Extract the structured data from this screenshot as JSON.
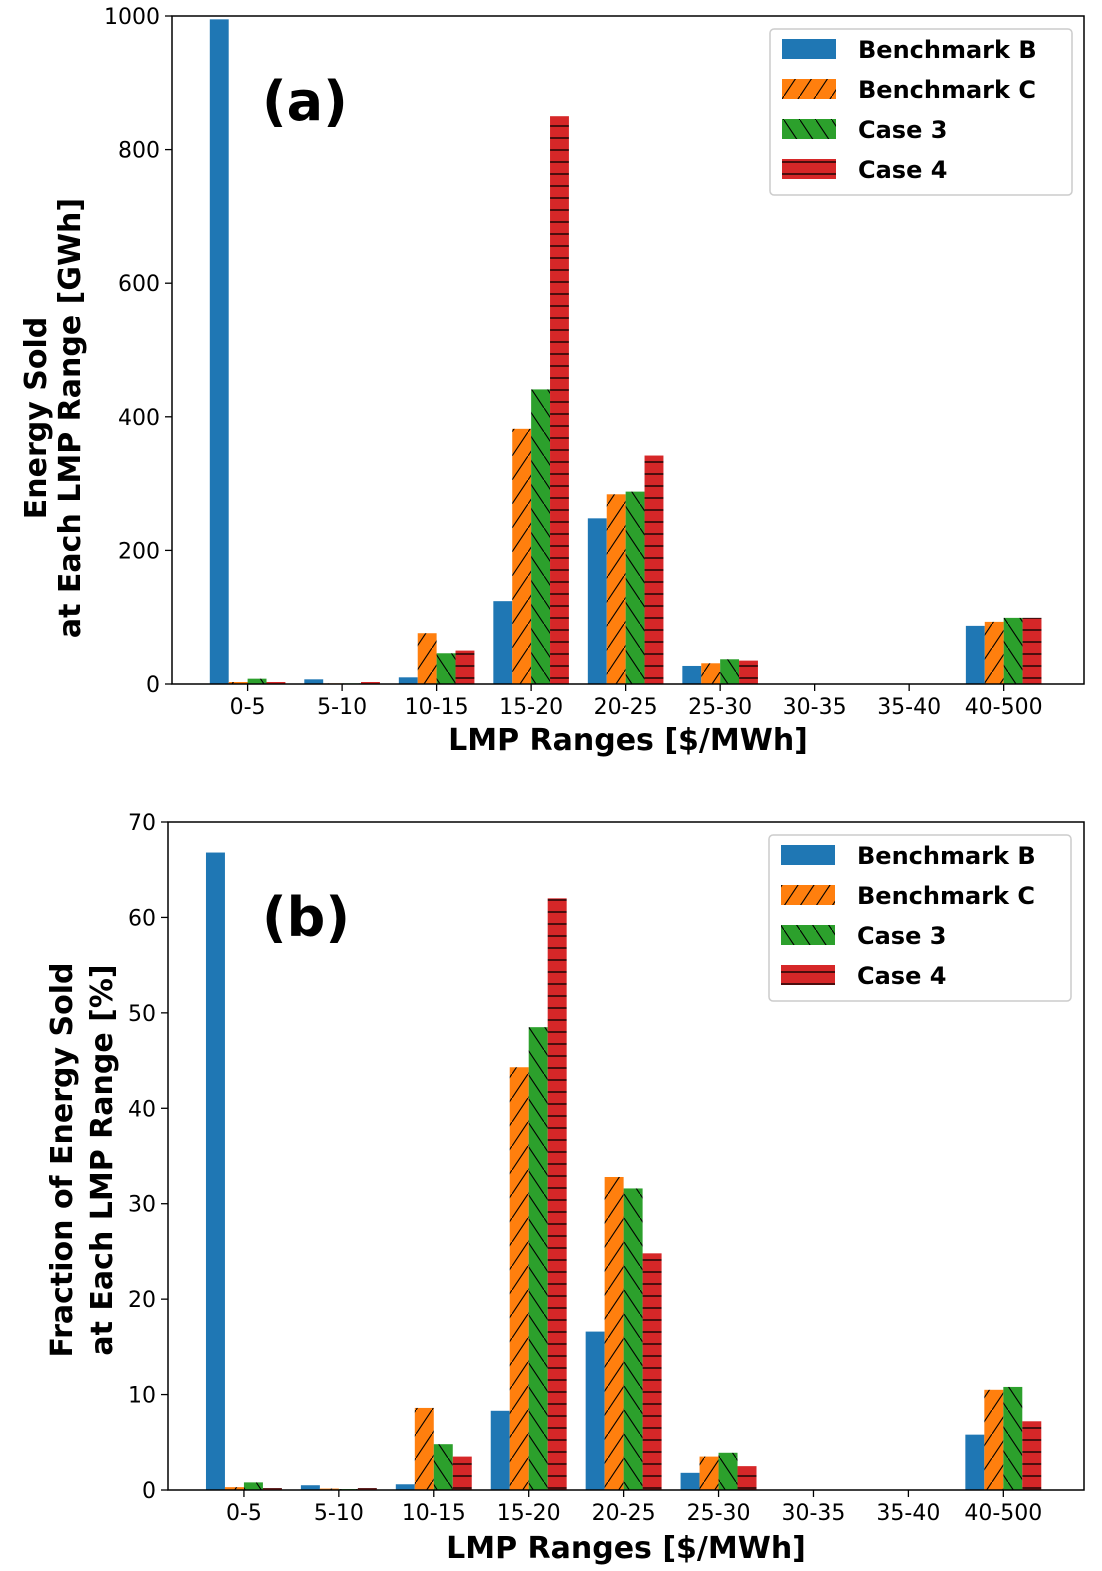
{
  "colors": {
    "benchmark_b": "#1f77b4",
    "benchmark_c": "#ff7f0e",
    "case_3": "#2ca02c",
    "case_4": "#d62728"
  },
  "chart_data": [
    {
      "type": "bar",
      "panel_tag": "(a)",
      "xlabel": "LMP Ranges [$/MWh]",
      "ylabel_lines": [
        "Energy Sold",
        "at Each LMP Range [GWh]"
      ],
      "ylim": [
        0,
        1000
      ],
      "yticks": [
        "0",
        "200",
        "400",
        "600",
        "800",
        "1000"
      ],
      "grid": false,
      "legend_position": "top-right",
      "categories": [
        "0-5",
        "5-10",
        "10-15",
        "15-20",
        "20-25",
        "25-30",
        "30-35",
        "35-40",
        "40-500"
      ],
      "series": [
        {
          "name": "Benchmark B",
          "color": "#1f77b4",
          "hatch": "none",
          "values": [
            995,
            7,
            10,
            124,
            248,
            27,
            0,
            0,
            87
          ]
        },
        {
          "name": "Benchmark C",
          "color": "#ff7f0e",
          "hatch": "slash",
          "values": [
            3,
            1,
            76,
            382,
            284,
            31,
            0,
            0,
            93
          ]
        },
        {
          "name": "Case 3",
          "color": "#2ca02c",
          "hatch": "backslash",
          "values": [
            8,
            1,
            46,
            441,
            288,
            37,
            0,
            0,
            99
          ]
        },
        {
          "name": "Case 4",
          "color": "#d62728",
          "hatch": "horizontal",
          "values": [
            3,
            3,
            50,
            850,
            342,
            35,
            0,
            0,
            99
          ]
        }
      ]
    },
    {
      "type": "bar",
      "panel_tag": "(b)",
      "xlabel": "LMP Ranges [$/MWh]",
      "ylabel_lines": [
        "Fraction of Energy Sold",
        "at Each LMP Range [%]"
      ],
      "ylim": [
        0,
        70
      ],
      "yticks": [
        "0",
        "10",
        "20",
        "30",
        "40",
        "50",
        "60",
        "70"
      ],
      "grid": false,
      "legend_position": "top-right",
      "categories": [
        "0-5",
        "5-10",
        "10-15",
        "15-20",
        "20-25",
        "25-30",
        "30-35",
        "35-40",
        "40-500"
      ],
      "series": [
        {
          "name": "Benchmark B",
          "color": "#1f77b4",
          "hatch": "none",
          "values": [
            66.8,
            0.5,
            0.6,
            8.3,
            16.6,
            1.8,
            0,
            0,
            5.8
          ]
        },
        {
          "name": "Benchmark C",
          "color": "#ff7f0e",
          "hatch": "slash",
          "values": [
            0.3,
            0.15,
            8.6,
            44.3,
            32.8,
            3.5,
            0,
            0,
            10.5
          ]
        },
        {
          "name": "Case 3",
          "color": "#2ca02c",
          "hatch": "backslash",
          "values": [
            0.8,
            0.1,
            4.8,
            48.5,
            31.6,
            3.9,
            0,
            0,
            10.8
          ]
        },
        {
          "name": "Case 4",
          "color": "#d62728",
          "hatch": "horizontal",
          "values": [
            0.2,
            0.2,
            3.5,
            62.0,
            24.8,
            2.5,
            0,
            0,
            7.2
          ]
        }
      ]
    }
  ]
}
